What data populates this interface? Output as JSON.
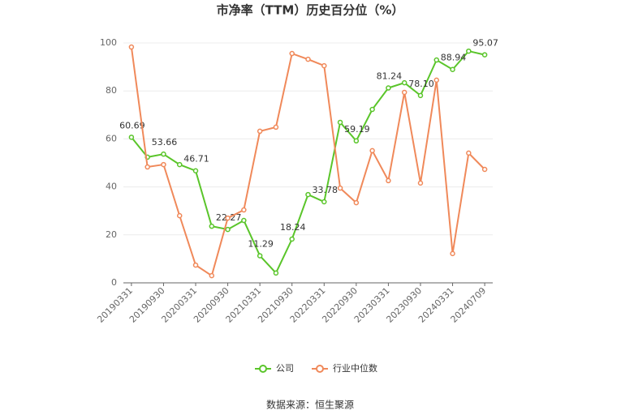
{
  "chart_data": {
    "type": "line",
    "title": "市净率（TTM）历史百分位（%）",
    "categories": [
      "20190331",
      null,
      "20190930",
      null,
      "20200331",
      null,
      "20200930",
      null,
      "20210331",
      null,
      "20210930",
      null,
      "20220331",
      null,
      "20220930",
      null,
      "20230331",
      null,
      "20230930",
      null,
      "20240331",
      null,
      "20240709"
    ],
    "series": [
      {
        "name": "公司",
        "color": "#5ac52a",
        "values": [
          60.69,
          52.4,
          53.66,
          49.3,
          46.71,
          23.6,
          22.27,
          26.0,
          11.29,
          4.1,
          18.24,
          36.8,
          33.78,
          66.9,
          59.19,
          72.3,
          81.24,
          83.4,
          78.1,
          92.9,
          88.94,
          96.6,
          95.07
        ],
        "value_labels": [
          "60.69",
          null,
          "53.66",
          null,
          "46.71",
          null,
          "22.27",
          null,
          "11.29",
          null,
          "18.24",
          null,
          "33.78",
          null,
          "59.19",
          null,
          "81.24",
          null,
          "78.10",
          null,
          "88.94",
          null,
          "95.07"
        ]
      },
      {
        "name": "行业中位数",
        "color": "#f0895a",
        "values": [
          98.3,
          48.3,
          49.3,
          28.0,
          7.4,
          3.0,
          27.0,
          30.4,
          63.2,
          64.9,
          95.6,
          93.2,
          90.5,
          39.5,
          33.4,
          55.1,
          42.6,
          79.4,
          41.6,
          84.5,
          12.2,
          54.1,
          47.3
        ]
      }
    ],
    "ylim": [
      0,
      100
    ],
    "yticks": [
      0,
      20,
      40,
      60,
      80,
      100
    ],
    "grid": true,
    "source": "数据来源：恒生聚源"
  }
}
